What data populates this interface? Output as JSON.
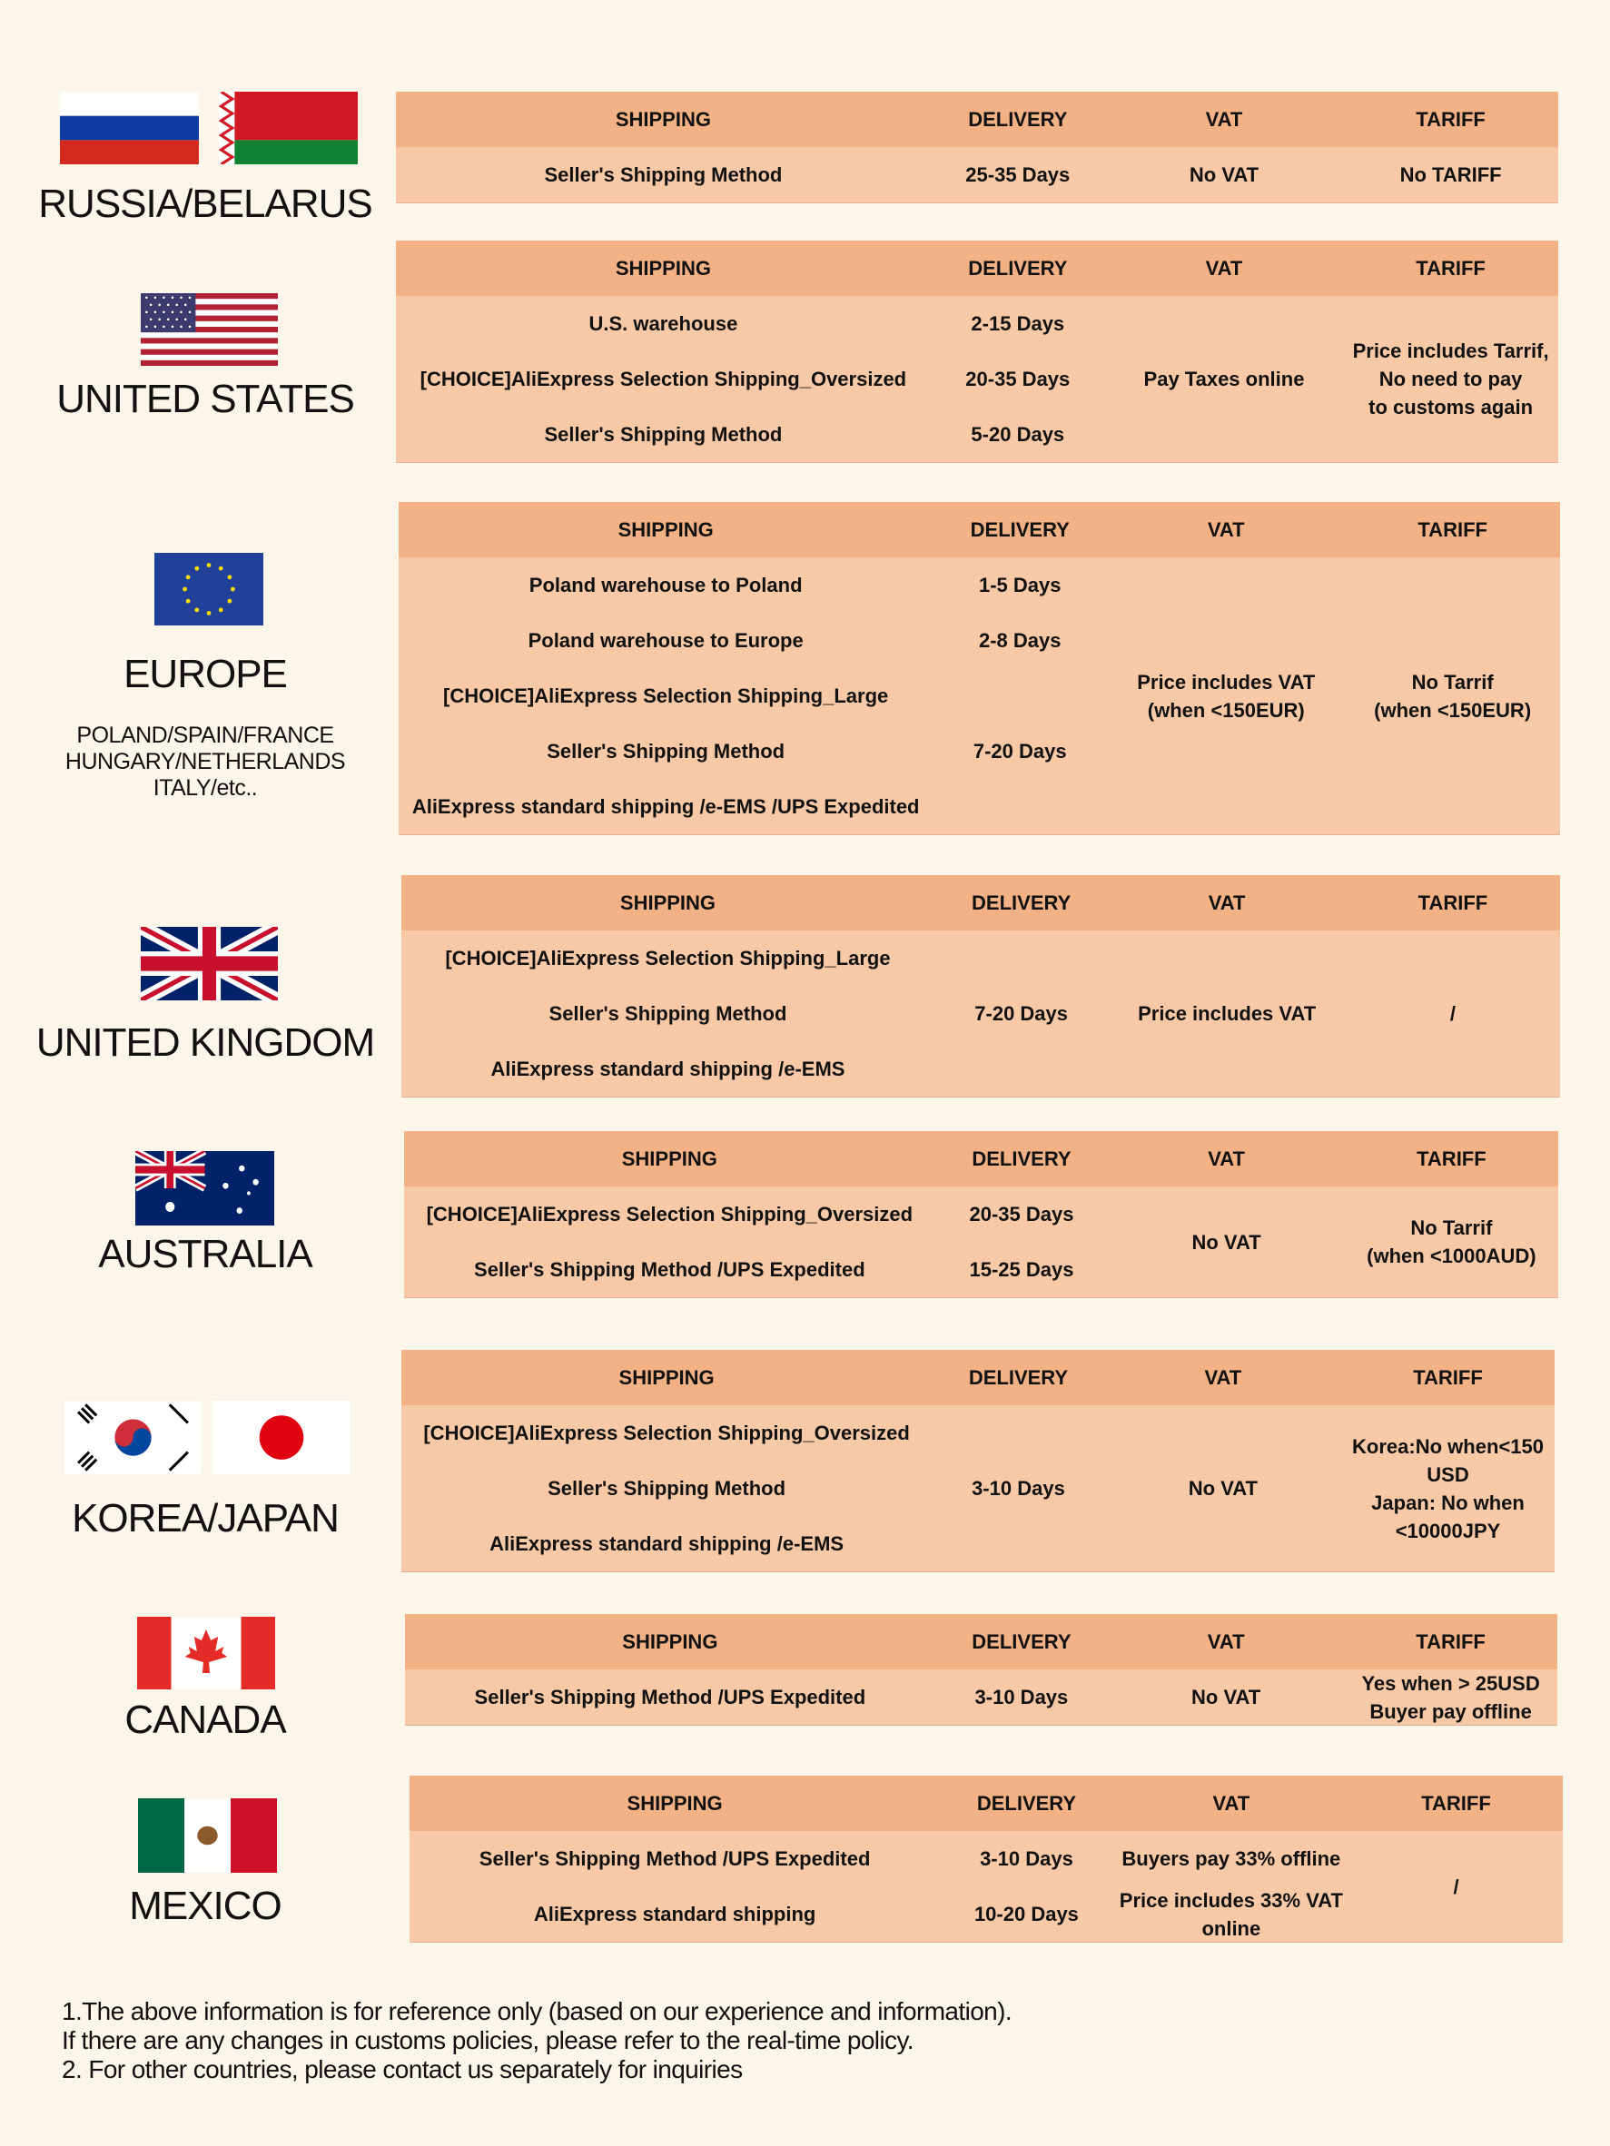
{
  "colors": {
    "background": "#fcf5e9",
    "header": "#f2b285",
    "body": "#f8c9a6"
  },
  "headers": {
    "shipping": "SHIPPING",
    "delivery": "DELIVERY",
    "vat": "VAT",
    "tariff": "TARIFF"
  },
  "countries": [
    {
      "name": "RUSSIA/BELARUS",
      "flags": [
        "russia-flag",
        "belarus-flag"
      ]
    },
    {
      "name": "UNITED STATES",
      "flags": [
        "usa-flag"
      ]
    },
    {
      "name": "EUROPE",
      "subtitle": [
        "POLAND/SPAIN/FRANCE",
        "HUNGARY/NETHERLANDS",
        "ITALY/etc.."
      ],
      "flags": [
        "eu-flag"
      ]
    },
    {
      "name": "UNITED KINGDOM",
      "flags": [
        "uk-flag"
      ]
    },
    {
      "name": "AUSTRALIA",
      "flags": [
        "australia-flag"
      ]
    },
    {
      "name": "KOREA/JAPAN",
      "flags": [
        "korea-flag",
        "japan-flag"
      ]
    },
    {
      "name": "CANADA",
      "flags": [
        "canada-flag"
      ]
    },
    {
      "name": "MEXICO",
      "flags": [
        "mexico-flag"
      ]
    }
  ],
  "tables": [
    {
      "shipping": [
        "Seller's Shipping Method"
      ],
      "delivery": [
        "25-35 Days"
      ],
      "vat": [
        "No VAT"
      ],
      "tariff": [
        "No TARIFF"
      ]
    },
    {
      "shipping": [
        "U.S. warehouse",
        "[CHOICE]AliExpress Selection Shipping_Oversized",
        "Seller's Shipping Method"
      ],
      "delivery": [
        "2-15 Days",
        "20-35 Days",
        "5-20 Days"
      ],
      "vat": "Pay Taxes online",
      "tariff": "Price includes Tarrif,\nNo need to pay\nto customs again"
    },
    {
      "shipping": [
        "Poland warehouse to Poland",
        "Poland warehouse to Europe",
        "[CHOICE]AliExpress Selection Shipping_Large",
        "Seller's Shipping Method",
        "AliExpress standard shipping /e-EMS /UPS Expedited"
      ],
      "delivery": [
        "1-5 Days",
        "2-8 Days",
        "",
        "7-20 Days",
        ""
      ],
      "vat": "Price includes VAT\n(when <150EUR)",
      "tariff": "No Tarrif\n(when <150EUR)"
    },
    {
      "shipping": [
        "[CHOICE]AliExpress Selection Shipping_Large",
        "Seller's Shipping Method",
        "AliExpress standard shipping /e-EMS"
      ],
      "delivery": [
        "",
        "7-20 Days",
        ""
      ],
      "vat": "Price includes VAT",
      "tariff": "/"
    },
    {
      "shipping": [
        "[CHOICE]AliExpress Selection Shipping_Oversized",
        "Seller's Shipping Method /UPS Expedited"
      ],
      "delivery": [
        "20-35 Days",
        "15-25 Days"
      ],
      "vat": "No VAT",
      "tariff": "No Tarrif\n(when <1000AUD)"
    },
    {
      "shipping": [
        "[CHOICE]AliExpress Selection Shipping_Oversized",
        "Seller's Shipping Method",
        "AliExpress standard shipping /e-EMS"
      ],
      "delivery": [
        "",
        "3-10 Days",
        ""
      ],
      "vat": "No VAT",
      "tariff": "Korea:No when<150\nUSD\nJapan: No when\n<10000JPY"
    },
    {
      "shipping": [
        "Seller's Shipping Method /UPS Expedited"
      ],
      "delivery": [
        "3-10 Days"
      ],
      "vat": [
        "No VAT"
      ],
      "tariff": [
        "Yes when > 25USD\nBuyer pay offline"
      ]
    },
    {
      "shipping": [
        "Seller's Shipping Method /UPS Expedited",
        "AliExpress standard shipping"
      ],
      "delivery": [
        "3-10 Days",
        "10-20 Days"
      ],
      "vat": [
        "Buyers pay 33% offline",
        "Price includes 33% VAT\nonline"
      ],
      "tariff": "/"
    }
  ],
  "footer": [
    "1.The above information is for reference only (based on our experience and information).",
    "If there are any changes in customs policies, please refer to the real-time policy.",
    "2. For other countries, please contact us separately for inquiries"
  ]
}
